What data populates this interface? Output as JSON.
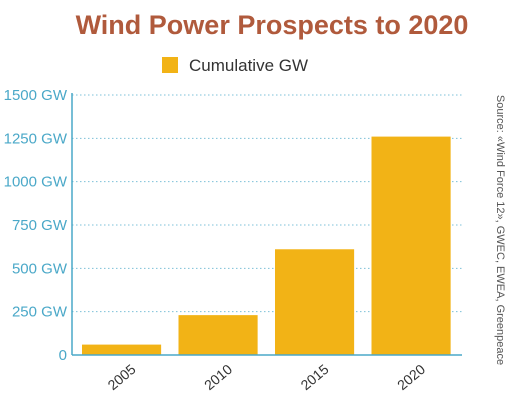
{
  "colors": {
    "title": "#b05a3c",
    "bar": "#f2b316",
    "axis": "#4aa8c8",
    "grid": "#7cc0d8",
    "text": "#333333"
  },
  "chart_data": {
    "type": "bar",
    "title": "Wind Power Prospects to 2020",
    "categories": [
      "2005",
      "2010",
      "2015",
      "2020"
    ],
    "series": [
      {
        "name": "Cumulative GW",
        "values": [
          60,
          230,
          610,
          1260
        ]
      }
    ],
    "ylim": [
      0,
      1500
    ],
    "yticks": [
      0,
      250,
      500,
      750,
      1000,
      1250,
      1500
    ],
    "ytick_labels": [
      "0",
      "250 GW",
      "500 GW",
      "750 GW",
      "1000 GW",
      "1250 GW",
      "1500 GW"
    ],
    "grid": true,
    "legend_position": "top-center",
    "source": "Source: «Wind Force 12», GWEC, EWEA, Greenpeace"
  }
}
